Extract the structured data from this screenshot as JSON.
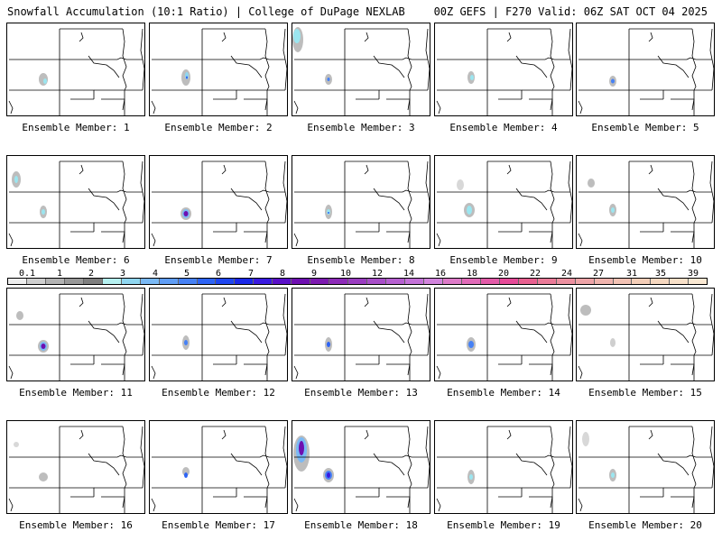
{
  "header": {
    "left": "Snowfall Accumulation (10:1 Ratio) | College of DuPage NEXLAB",
    "right": "00Z GEFS | F270 Valid: 06Z SAT OCT 04 2025"
  },
  "members": [
    {
      "label": "Ensemble Member: 1"
    },
    {
      "label": "Ensemble Member: 2"
    },
    {
      "label": "Ensemble Member: 3"
    },
    {
      "label": "Ensemble Member: 4"
    },
    {
      "label": "Ensemble Member: 5"
    },
    {
      "label": "Ensemble Member: 6"
    },
    {
      "label": "Ensemble Member: 7"
    },
    {
      "label": "Ensemble Member: 8"
    },
    {
      "label": "Ensemble Member: 9"
    },
    {
      "label": "Ensemble Member: 10"
    },
    {
      "label": "Ensemble Member: 11"
    },
    {
      "label": "Ensemble Member: 12"
    },
    {
      "label": "Ensemble Member: 13"
    },
    {
      "label": "Ensemble Member: 14"
    },
    {
      "label": "Ensemble Member: 15"
    },
    {
      "label": "Ensemble Member: 16"
    },
    {
      "label": "Ensemble Member: 17"
    },
    {
      "label": "Ensemble Member: 18"
    },
    {
      "label": "Ensemble Member: 19"
    },
    {
      "label": "Ensemble Member: 20"
    }
  ],
  "color_scale": {
    "labels": [
      "0.1",
      "1",
      "2",
      "3",
      "4",
      "5",
      "6",
      "7",
      "8",
      "9",
      "10",
      "12",
      "14",
      "16",
      "18",
      "20",
      "22",
      "24",
      "27",
      "31",
      "35",
      "39"
    ],
    "colors": [
      "#eeeeee",
      "#cfcfcf",
      "#b3b3b3",
      "#999999",
      "#7f7f7f",
      "#b5f0f0",
      "#8fd6f0",
      "#7ab9f5",
      "#5f9df5",
      "#4681f5",
      "#2e64f5",
      "#1f46f0",
      "#1a28e8",
      "#3a1ae0",
      "#5a10c8",
      "#6e0fb0",
      "#7d1ab0",
      "#8d2ab8",
      "#9a3cc0",
      "#a84ec8",
      "#b660d0",
      "#c472d8",
      "#d284dd",
      "#dd7ac8",
      "#e06ab8",
      "#e25aa8",
      "#e64a98",
      "#e86090",
      "#ea7a98",
      "#ec90a0",
      "#eea4a8",
      "#f0b4ae",
      "#f2c2b4",
      "#f4ceb8",
      "#f6d8c0",
      "#f8e0c8",
      "#fae8d2"
    ]
  }
}
